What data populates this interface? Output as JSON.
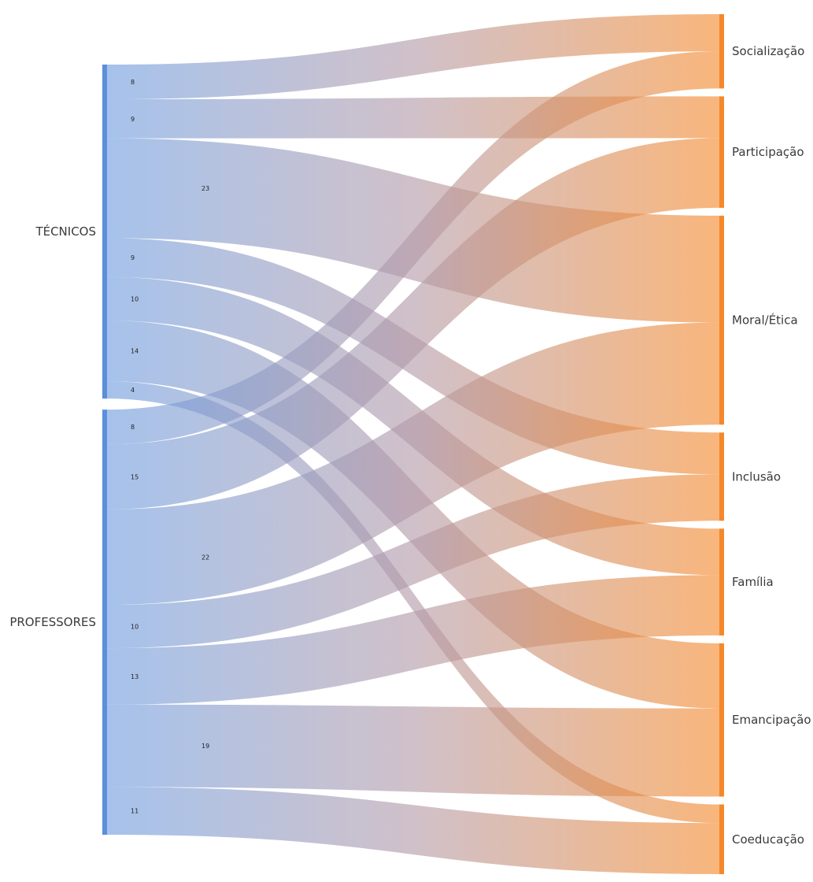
{
  "sources": [
    {
      "id": "tecnicos",
      "label": "TÉCNICOS",
      "color": "#5b8fd8"
    },
    {
      "id": "professores",
      "label": "PROFESSORES",
      "color": "#5b8fd8"
    }
  ],
  "targets": [
    {
      "id": "socializacao",
      "label": "Socialização",
      "color": "#f5882a"
    },
    {
      "id": "participacao",
      "label": "Participação",
      "color": "#f5882a"
    },
    {
      "id": "moral",
      "label": "Moral/Ética",
      "color": "#f5882a"
    },
    {
      "id": "inclusao",
      "label": "Inclusão",
      "color": "#f5882a"
    },
    {
      "id": "familia",
      "label": "Família",
      "color": "#f5882a"
    },
    {
      "id": "emancipacao",
      "label": "Emancipação",
      "color": "#f5882a"
    },
    {
      "id": "coeducacao",
      "label": "Coeducação",
      "color": "#f5882a"
    }
  ],
  "links": [
    {
      "source": "tecnicos",
      "target": "socializacao",
      "value": 8,
      "label": "8"
    },
    {
      "source": "tecnicos",
      "target": "participacao",
      "value": 9,
      "label": "9"
    },
    {
      "source": "tecnicos",
      "target": "moral",
      "value": 23,
      "label": "23"
    },
    {
      "source": "tecnicos",
      "target": "inclusao",
      "value": 9,
      "label": "9"
    },
    {
      "source": "tecnicos",
      "target": "familia",
      "value": 10,
      "label": "10"
    },
    {
      "source": "tecnicos",
      "target": "emancipacao",
      "value": 14,
      "label": "14"
    },
    {
      "source": "tecnicos",
      "target": "coeducacao",
      "value": 4,
      "label": "4"
    },
    {
      "source": "professores",
      "target": "socializacao",
      "value": 8,
      "label": "8"
    },
    {
      "source": "professores",
      "target": "participacao",
      "value": 15,
      "label": "15"
    },
    {
      "source": "professores",
      "target": "moral",
      "value": 22,
      "label": "22"
    },
    {
      "source": "professores",
      "target": "inclusao",
      "value": 10,
      "label": "10"
    },
    {
      "source": "professores",
      "target": "familia",
      "value": 13,
      "label": "13"
    },
    {
      "source": "professores",
      "target": "emancipacao",
      "value": 19,
      "label": "19"
    },
    {
      "source": "professores",
      "target": "coeducacao",
      "value": 11,
      "label": "11"
    }
  ]
}
